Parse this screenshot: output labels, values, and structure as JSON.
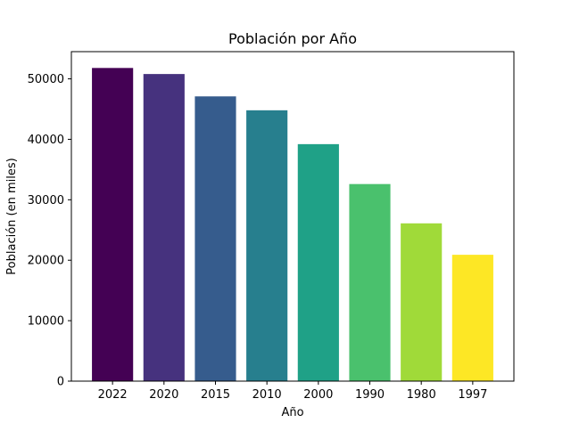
{
  "chart_data": {
    "type": "bar",
    "title": "Población por Año",
    "xlabel": "Año",
    "ylabel": "Población (en miles)",
    "categories": [
      "2022",
      "2020",
      "2015",
      "2010",
      "2000",
      "1990",
      "1980",
      "1997"
    ],
    "values": [
      51800,
      50800,
      47100,
      44800,
      39200,
      32600,
      26100,
      20900
    ],
    "ylim": [
      0,
      54500
    ],
    "yticks": [
      0,
      10000,
      20000,
      30000,
      40000,
      50000
    ],
    "grid": false,
    "colors": [
      "#440154",
      "#46327e",
      "#365c8d",
      "#277f8e",
      "#1fa187",
      "#4ac16d",
      "#a0da39",
      "#fde725"
    ]
  }
}
